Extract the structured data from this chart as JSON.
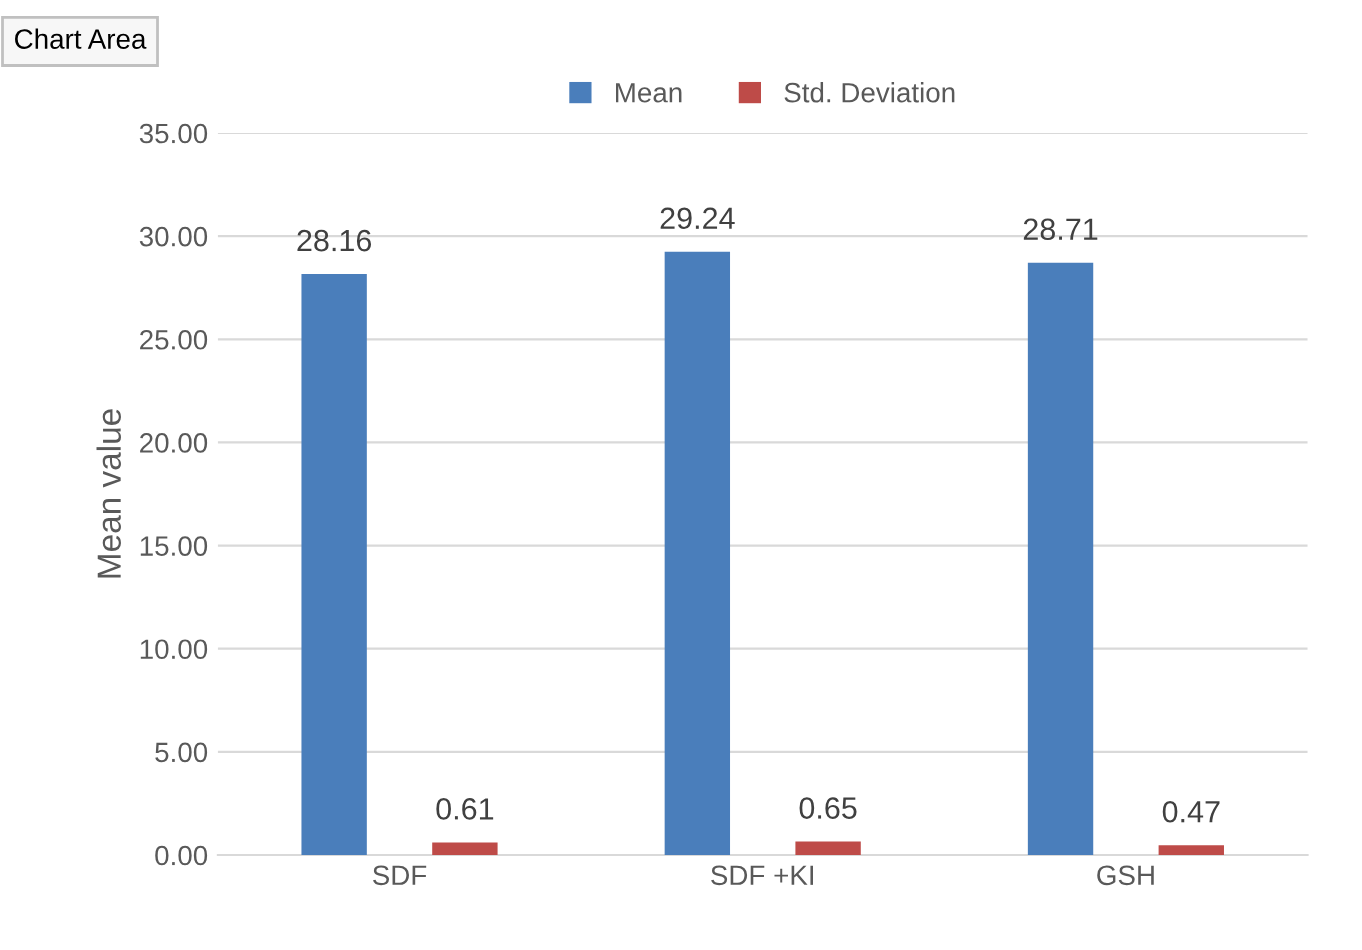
{
  "chart_data": {
    "type": "bar",
    "categories": [
      "SDF",
      "SDF +KI",
      "GSH"
    ],
    "series": [
      {
        "name": "Mean",
        "color": "#4a7ebb",
        "values": [
          28.16,
          29.24,
          28.71
        ]
      },
      {
        "name": "Std. Deviation",
        "color": "#be4b48",
        "values": [
          0.61,
          0.65,
          0.47
        ]
      }
    ],
    "ylabel": "Mean value",
    "ylim": [
      0,
      35
    ],
    "yticks": [
      {
        "value": 0,
        "label": "0.00"
      },
      {
        "value": 5,
        "label": "5.00"
      },
      {
        "value": 10,
        "label": "10.00"
      },
      {
        "value": 15,
        "label": "15.00"
      },
      {
        "value": 20,
        "label": "20.00"
      },
      {
        "value": 25,
        "label": "25.00"
      },
      {
        "value": 30,
        "label": "30.00"
      },
      {
        "value": 35,
        "label": "35.00"
      }
    ],
    "grid": "y",
    "legend": "top",
    "data_labels": true,
    "annotations": [
      "Chart Area"
    ]
  }
}
